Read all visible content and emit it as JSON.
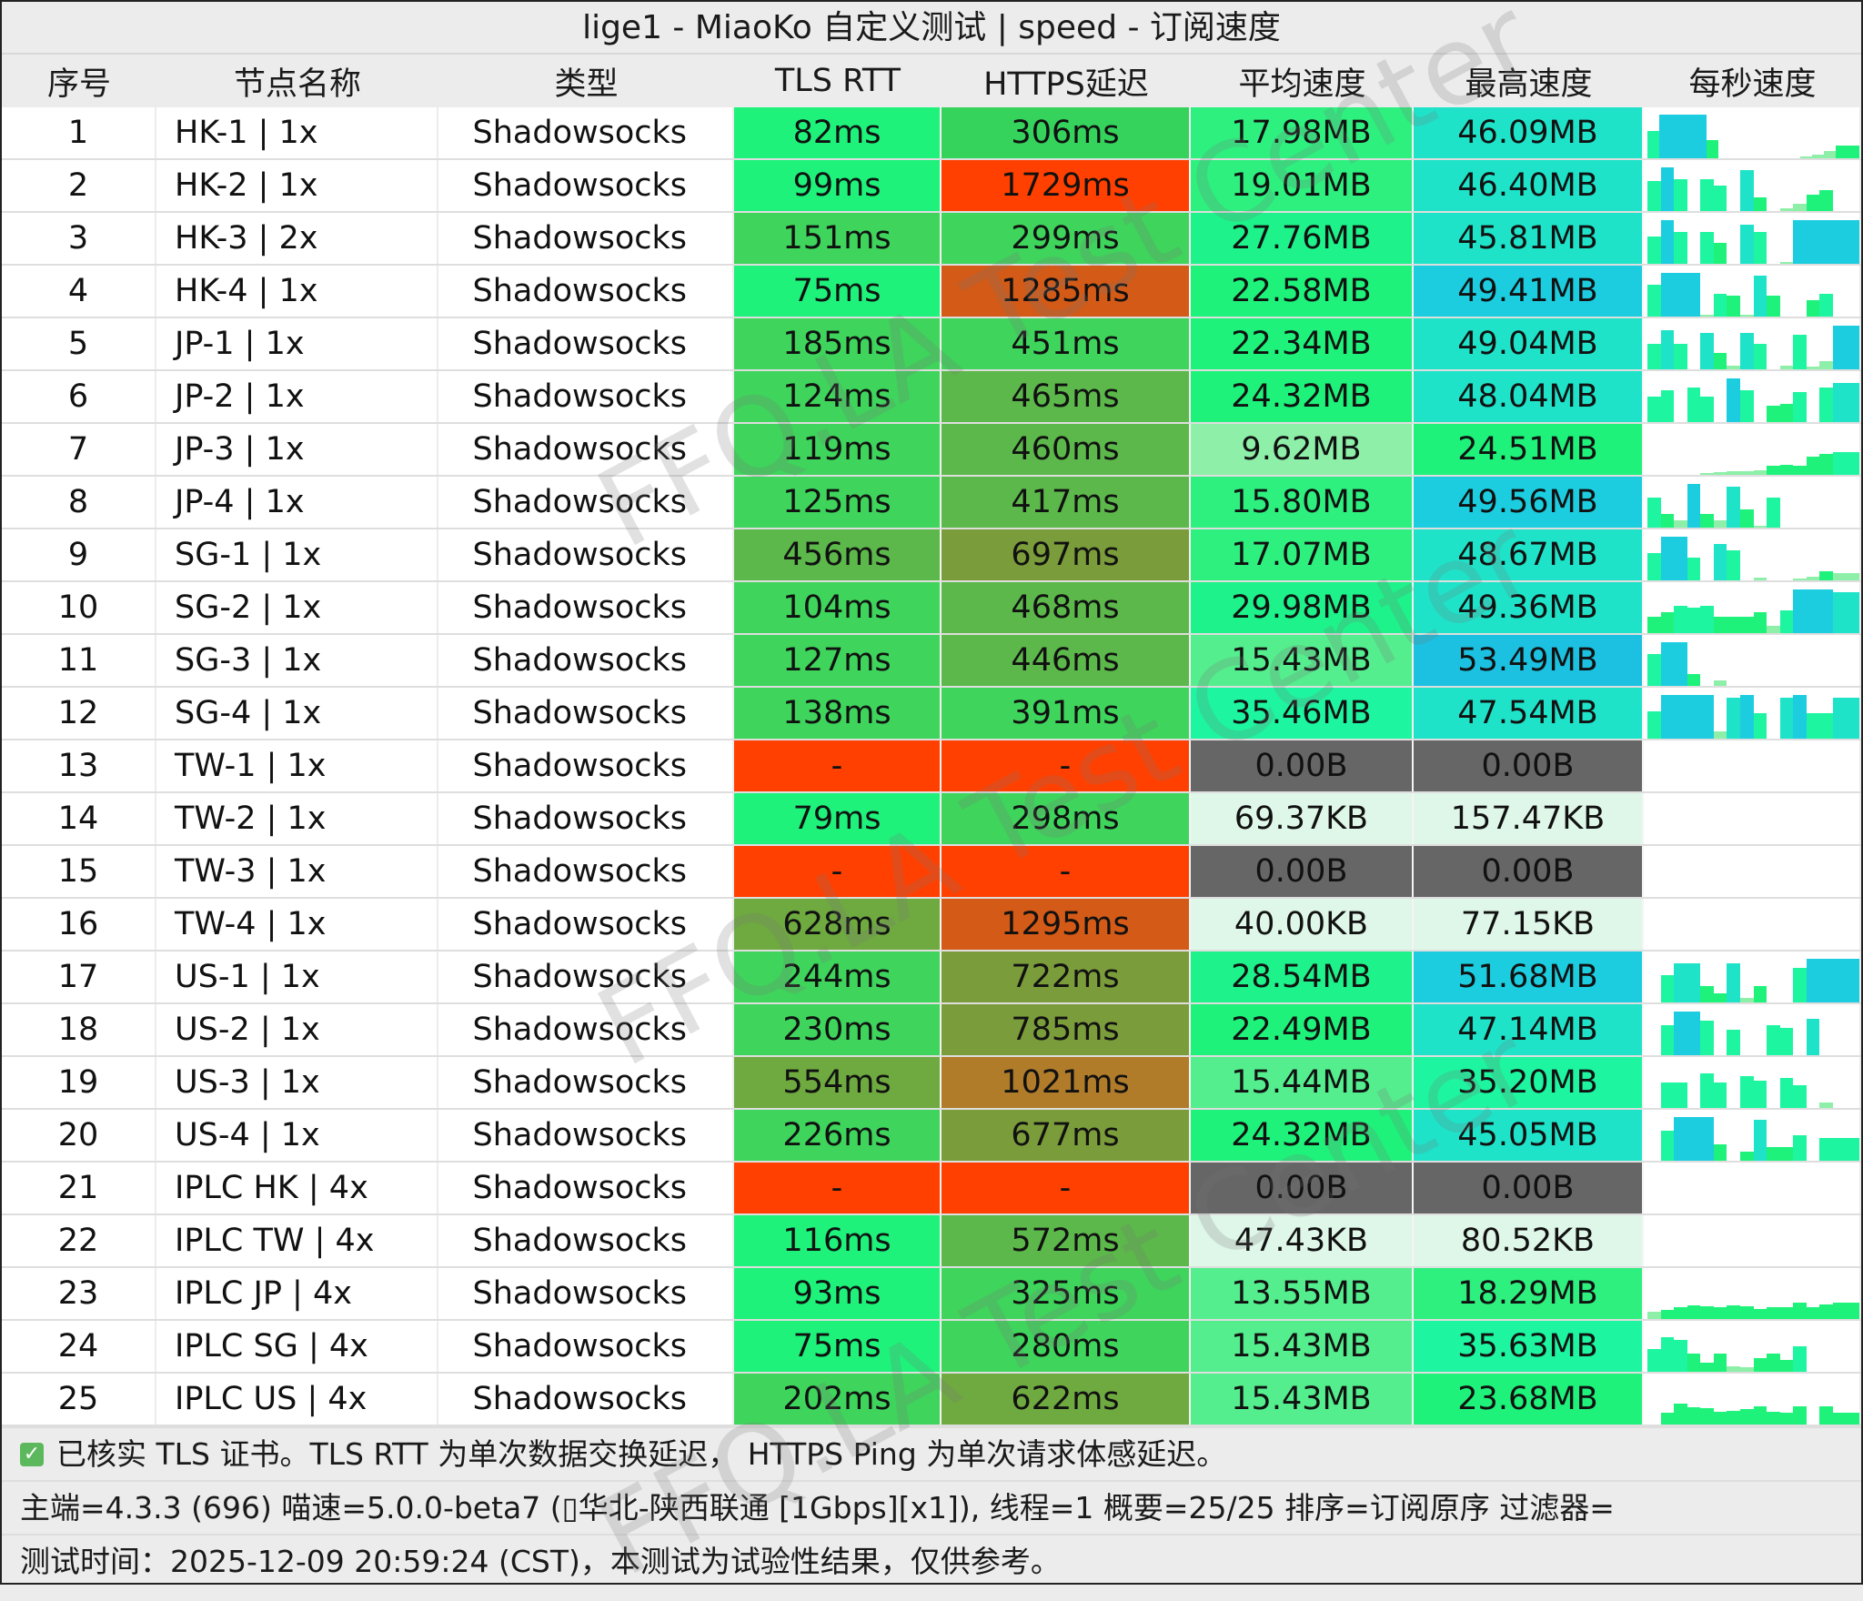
{
  "title": "lige1 - MiaoKo 自定义测试 | speed - 订阅速度",
  "columns": [
    "序号",
    "节点名称",
    "类型",
    "TLS RTT",
    "HTTPS延迟",
    "平均速度",
    "最高速度",
    "每秒速度"
  ],
  "colors": {
    "green_fast": "#1ef27a",
    "green_mid": "#3fd45c",
    "olive": "#7b9c3a",
    "orange": "#d35a17",
    "red": "#ff4000",
    "gray_fail": "#666666",
    "pale_mint": "#dff7e8",
    "teal": "#1ee3c9",
    "cyan": "#1ccde0",
    "light_green": "#8ef0a8"
  },
  "rows": [
    {
      "idx": "1",
      "name": "HK-1 | 1x",
      "type": "Shadowsocks",
      "tls": "82ms",
      "https": "306ms",
      "avg": "17.98MB",
      "max": "46.09MB",
      "tls_c": "#1ef27a",
      "https_c": "#35d25c",
      "avg_c": "#2ef07f",
      "max_c": "#1ee3c9",
      "spark": [
        60,
        95,
        95,
        95,
        95,
        40,
        0,
        0,
        0,
        0,
        0,
        0,
        0,
        3,
        8,
        15,
        28,
        28
      ]
    },
    {
      "idx": "2",
      "name": "HK-2 | 1x",
      "type": "Shadowsocks",
      "tls": "99ms",
      "https": "1729ms",
      "avg": "19.01MB",
      "max": "46.40MB",
      "tls_c": "#1ef27a",
      "https_c": "#ff4000",
      "avg_c": "#2ef07f",
      "max_c": "#1ee3c9",
      "spark": [
        65,
        95,
        70,
        0,
        70,
        55,
        0,
        90,
        30,
        0,
        5,
        15,
        35,
        45,
        0,
        0
      ]
    },
    {
      "idx": "3",
      "name": "HK-3 | 2x",
      "type": "Shadowsocks",
      "tls": "151ms",
      "https": "299ms",
      "avg": "27.76MB",
      "max": "45.81MB",
      "tls_c": "#3fd45c",
      "https_c": "#3fd45c",
      "avg_c": "#1ef28a",
      "max_c": "#1ee3c9",
      "spark": [
        60,
        95,
        70,
        0,
        70,
        45,
        0,
        85,
        70,
        0,
        3,
        95,
        95,
        95,
        95,
        95
      ]
    },
    {
      "idx": "4",
      "name": "HK-4 | 1x",
      "type": "Shadowsocks",
      "tls": "75ms",
      "https": "1285ms",
      "avg": "22.58MB",
      "max": "49.41MB",
      "tls_c": "#1ef27a",
      "https_c": "#d35a17",
      "avg_c": "#1ef27a",
      "max_c": "#1ccde0",
      "spark": [
        70,
        95,
        95,
        95,
        3,
        50,
        45,
        3,
        90,
        45,
        0,
        0,
        35,
        50,
        0,
        0
      ]
    },
    {
      "idx": "5",
      "name": "JP-1 | 1x",
      "type": "Shadowsocks",
      "tls": "185ms",
      "https": "451ms",
      "avg": "22.34MB",
      "max": "49.04MB",
      "tls_c": "#3fd45c",
      "https_c": "#3fd45c",
      "avg_c": "#1ef27a",
      "max_c": "#1ee3c9",
      "spark": [
        55,
        85,
        55,
        0,
        80,
        35,
        8,
        80,
        55,
        0,
        8,
        75,
        5,
        18,
        95,
        95
      ]
    },
    {
      "idx": "6",
      "name": "JP-2 | 1x",
      "type": "Shadowsocks",
      "tls": "124ms",
      "https": "465ms",
      "avg": "24.32MB",
      "max": "48.04MB",
      "tls_c": "#3fd45c",
      "https_c": "#5cb84a",
      "avg_c": "#1ef27a",
      "max_c": "#1ee3c9",
      "spark": [
        55,
        70,
        0,
        75,
        55,
        0,
        95,
        70,
        0,
        35,
        40,
        65,
        0,
        75,
        85,
        85
      ]
    },
    {
      "idx": "7",
      "name": "JP-3 | 1x",
      "type": "Shadowsocks",
      "tls": "119ms",
      "https": "460ms",
      "avg": "9.62MB",
      "max": "24.51MB",
      "tls_c": "#3fd45c",
      "https_c": "#5cb84a",
      "avg_c": "#8ef0a8",
      "max_c": "#1ef27a",
      "spark": [
        0,
        0,
        0,
        0,
        3,
        5,
        8,
        8,
        10,
        20,
        22,
        20,
        40,
        45,
        50,
        50
      ]
    },
    {
      "idx": "8",
      "name": "JP-4 | 1x",
      "type": "Shadowsocks",
      "tls": "125ms",
      "https": "417ms",
      "avg": "15.80MB",
      "max": "49.56MB",
      "tls_c": "#3fd45c",
      "https_c": "#5cb84a",
      "avg_c": "#2ef07f",
      "max_c": "#1ccde0",
      "spark": [
        65,
        30,
        15,
        95,
        30,
        15,
        90,
        40,
        3,
        65,
        0,
        0,
        0,
        0,
        0,
        0
      ]
    },
    {
      "idx": "9",
      "name": "SG-1 | 1x",
      "type": "Shadowsocks",
      "tls": "456ms",
      "https": "697ms",
      "avg": "17.07MB",
      "max": "48.67MB",
      "tls_c": "#5cb84a",
      "https_c": "#7b9c3a",
      "avg_c": "#2ef07f",
      "max_c": "#1ee3c9",
      "spark": [
        60,
        95,
        95,
        50,
        0,
        80,
        65,
        0,
        5,
        0,
        0,
        3,
        8,
        20,
        15,
        15
      ]
    },
    {
      "idx": "10",
      "name": "SG-2 | 1x",
      "type": "Shadowsocks",
      "tls": "104ms",
      "https": "468ms",
      "avg": "29.98MB",
      "max": "49.36MB",
      "tls_c": "#3fd45c",
      "https_c": "#5cb84a",
      "avg_c": "#1ef28a",
      "max_c": "#1ee3c9",
      "spark": [
        35,
        45,
        60,
        55,
        60,
        35,
        35,
        35,
        45,
        15,
        50,
        95,
        95,
        95,
        90,
        90
      ]
    },
    {
      "idx": "11",
      "name": "SG-3 | 1x",
      "type": "Shadowsocks",
      "tls": "127ms",
      "https": "446ms",
      "avg": "15.43MB",
      "max": "53.49MB",
      "tls_c": "#3fd45c",
      "https_c": "#5cb84a",
      "avg_c": "#55ee8e",
      "max_c": "#1cc0e0",
      "spark": [
        70,
        95,
        95,
        25,
        0,
        12,
        0,
        0,
        0,
        0,
        0,
        0,
        0,
        0,
        0,
        0
      ]
    },
    {
      "idx": "12",
      "name": "SG-4 | 1x",
      "type": "Shadowsocks",
      "tls": "138ms",
      "https": "391ms",
      "avg": "35.46MB",
      "max": "47.54MB",
      "tls_c": "#3fd45c",
      "https_c": "#3fd45c",
      "avg_c": "#1ef5a0",
      "max_c": "#1ee3c9",
      "spark": [
        60,
        95,
        95,
        95,
        95,
        15,
        90,
        95,
        55,
        0,
        90,
        95,
        55,
        55,
        90,
        90
      ]
    },
    {
      "idx": "13",
      "name": "TW-1 | 1x",
      "type": "Shadowsocks",
      "tls": "-",
      "https": "-",
      "avg": "0.00B",
      "max": "0.00B",
      "tls_c": "#ff4000",
      "https_c": "#ff4000",
      "avg_c": "#666666",
      "max_c": "#666666",
      "spark": []
    },
    {
      "idx": "14",
      "name": "TW-2 | 1x",
      "type": "Shadowsocks",
      "tls": "79ms",
      "https": "298ms",
      "avg": "69.37KB",
      "max": "157.47KB",
      "tls_c": "#1ef27a",
      "https_c": "#3fd45c",
      "avg_c": "#dff7e8",
      "max_c": "#dff7e8",
      "spark": []
    },
    {
      "idx": "15",
      "name": "TW-3 | 1x",
      "type": "Shadowsocks",
      "tls": "-",
      "https": "-",
      "avg": "0.00B",
      "max": "0.00B",
      "tls_c": "#ff4000",
      "https_c": "#ff4000",
      "avg_c": "#666666",
      "max_c": "#666666",
      "spark": []
    },
    {
      "idx": "16",
      "name": "TW-4 | 1x",
      "type": "Shadowsocks",
      "tls": "628ms",
      "https": "1295ms",
      "avg": "40.00KB",
      "max": "77.15KB",
      "tls_c": "#6faa40",
      "https_c": "#d35a17",
      "avg_c": "#dff7e8",
      "max_c": "#dff7e8",
      "spark": []
    },
    {
      "idx": "17",
      "name": "US-1 | 1x",
      "type": "Shadowsocks",
      "tls": "244ms",
      "https": "722ms",
      "avg": "28.54MB",
      "max": "51.68MB",
      "tls_c": "#3fd45c",
      "https_c": "#7b9c3a",
      "avg_c": "#1ef28a",
      "max_c": "#1ccde0",
      "spark": [
        0,
        60,
        85,
        85,
        35,
        20,
        85,
        10,
        35,
        0,
        0,
        75,
        95,
        95,
        95,
        95
      ]
    },
    {
      "idx": "18",
      "name": "US-2 | 1x",
      "type": "Shadowsocks",
      "tls": "230ms",
      "https": "785ms",
      "avg": "22.49MB",
      "max": "47.14MB",
      "tls_c": "#3fd45c",
      "https_c": "#7b9c3a",
      "avg_c": "#1ef27a",
      "max_c": "#1ee3c9",
      "spark": [
        0,
        65,
        95,
        95,
        75,
        0,
        55,
        0,
        0,
        65,
        60,
        0,
        80,
        0,
        0,
        0
      ]
    },
    {
      "idx": "19",
      "name": "US-3 | 1x",
      "type": "Shadowsocks",
      "tls": "554ms",
      "https": "1021ms",
      "avg": "15.44MB",
      "max": "35.20MB",
      "tls_c": "#6faa40",
      "https_c": "#b07c2a",
      "avg_c": "#55ee8e",
      "max_c": "#1ef5a0",
      "spark": [
        0,
        55,
        55,
        0,
        75,
        55,
        0,
        70,
        60,
        0,
        65,
        50,
        0,
        12,
        0,
        0
      ]
    },
    {
      "idx": "20",
      "name": "US-4 | 1x",
      "type": "Shadowsocks",
      "tls": "226ms",
      "https": "677ms",
      "avg": "24.32MB",
      "max": "45.05MB",
      "tls_c": "#3fd45c",
      "https_c": "#7b9c3a",
      "avg_c": "#1ef27a",
      "max_c": "#1ee3c9",
      "spark": [
        0,
        65,
        95,
        95,
        95,
        35,
        0,
        20,
        90,
        30,
        30,
        55,
        0,
        50,
        50,
        50
      ]
    },
    {
      "idx": "21",
      "name": "IPLC HK | 4x",
      "type": "Shadowsocks",
      "tls": "-",
      "https": "-",
      "avg": "0.00B",
      "max": "0.00B",
      "tls_c": "#ff4000",
      "https_c": "#ff4000",
      "avg_c": "#666666",
      "max_c": "#666666",
      "spark": []
    },
    {
      "idx": "22",
      "name": "IPLC TW | 4x",
      "type": "Shadowsocks",
      "tls": "116ms",
      "https": "572ms",
      "avg": "47.43KB",
      "max": "80.52KB",
      "tls_c": "#1ef27a",
      "https_c": "#5cb84a",
      "avg_c": "#dff7e8",
      "max_c": "#dff7e8",
      "spark": []
    },
    {
      "idx": "23",
      "name": "IPLC JP | 4x",
      "type": "Shadowsocks",
      "tls": "93ms",
      "https": "325ms",
      "avg": "13.55MB",
      "max": "18.29MB",
      "tls_c": "#1ef27a",
      "https_c": "#3fd45c",
      "avg_c": "#55ee8e",
      "max_c": "#2ef07f",
      "spark": [
        15,
        20,
        25,
        30,
        28,
        25,
        30,
        27,
        22,
        25,
        25,
        35,
        25,
        32,
        35,
        35
      ]
    },
    {
      "idx": "24",
      "name": "IPLC SG | 4x",
      "type": "Shadowsocks",
      "tls": "75ms",
      "https": "280ms",
      "avg": "15.43MB",
      "max": "35.63MB",
      "tls_c": "#1ef27a",
      "https_c": "#3fd45c",
      "avg_c": "#55ee8e",
      "max_c": "#1ef5a0",
      "spark": [
        50,
        75,
        70,
        40,
        20,
        40,
        12,
        10,
        30,
        40,
        25,
        55,
        0,
        0,
        0,
        0
      ]
    },
    {
      "idx": "25",
      "name": "IPLC US | 4x",
      "type": "Shadowsocks",
      "tls": "202ms",
      "https": "622ms",
      "avg": "15.43MB",
      "max": "23.68MB",
      "tls_c": "#3fd45c",
      "https_c": "#6faa40",
      "avg_c": "#55ee8e",
      "max_c": "#1ef27a",
      "spark": [
        0,
        25,
        45,
        38,
        35,
        28,
        30,
        33,
        40,
        28,
        25,
        40,
        0,
        40,
        25,
        25
      ]
    }
  ],
  "footer": {
    "line1": "已核实 TLS 证书。TLS RTT 为单次数据交换延迟， HTTPS Ping 为单次请求体感延迟。",
    "line2": "主端=4.3.3 (696) 喵速=5.0.0-beta7 (▯华北-陕西联通 [1Gbps][x1]), 线程=1 概要=25/25 排序=订阅原序 过滤器=",
    "line3": "测试时间：2025-12-09 20:59:24 (CST)，本测试为试验性结果，仅供参考。"
  },
  "watermark": "FFQ.LA Test Center"
}
